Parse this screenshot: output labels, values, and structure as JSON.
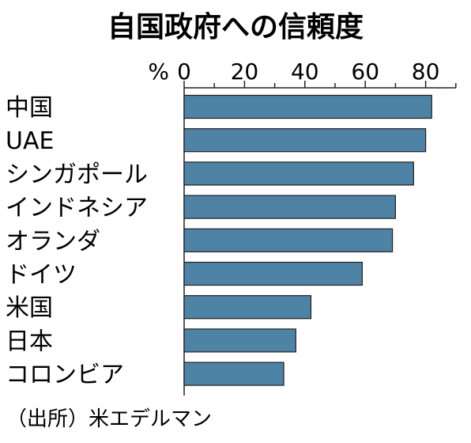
{
  "chart_data": {
    "type": "bar",
    "orientation": "horizontal",
    "title": "自国政府への信頼度",
    "unit": "%",
    "categories": [
      "中国",
      "UAE",
      "シンガポール",
      "インドネシア",
      "オランダ",
      "ドイツ",
      "米国",
      "日本",
      "コロンビア"
    ],
    "values": [
      82,
      80,
      76,
      70,
      69,
      59,
      42,
      37,
      33
    ],
    "xlim": [
      0,
      90
    ],
    "xticks": [
      0,
      20,
      40,
      60,
      80
    ],
    "tick_labels": [
      "0",
      "20",
      "40",
      "60",
      "80"
    ],
    "grid": false,
    "bar_color": "#4f83a6",
    "source": "（出所）米エデルマン"
  }
}
